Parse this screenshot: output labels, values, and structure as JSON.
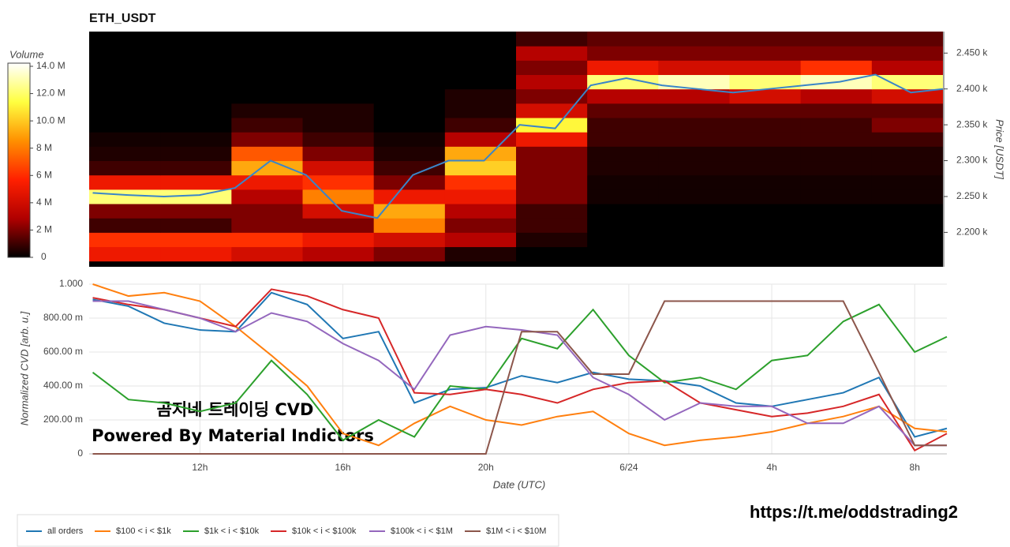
{
  "chart_data": [
    {
      "type": "heatmap",
      "title": "ETH_USDT",
      "ylabel": "Price [USDT]",
      "colorbar_label": "Volume",
      "xlim": [
        8.9,
        32.9
      ],
      "ylim": [
        2152,
        2480
      ],
      "yticks": [
        {
          "value": 2200,
          "label": "2.200 k"
        },
        {
          "value": 2250,
          "label": "2.250 k"
        },
        {
          "value": 2300,
          "label": "2.300 k"
        },
        {
          "value": 2350,
          "label": "2.350 k"
        },
        {
          "value": 2400,
          "label": "2.400 k"
        },
        {
          "value": 2450,
          "label": "2.450 k"
        }
      ],
      "zlim": [
        0,
        14000000
      ],
      "zticks": [
        0,
        {
          "value": 2000000,
          "label": "2 M"
        },
        {
          "value": 4000000,
          "label": "4 M"
        },
        {
          "value": 6000000,
          "label": "6 M"
        },
        {
          "value": 8000000,
          "label": "8 M"
        },
        {
          "value": 10000000,
          "label": "10.0 M"
        },
        {
          "value": 12000000,
          "label": "12.0 M"
        },
        {
          "value": 14000000,
          "label": "14.0 M"
        }
      ],
      "colorscale": [
        "#000000",
        "#b00000",
        "#ff2000",
        "#ff9000",
        "#ffff40",
        "#ffffff"
      ],
      "x_edges": [
        8.9,
        10.9,
        12.9,
        14.9,
        16.9,
        18.9,
        20.9,
        22.9,
        24.9,
        26.9,
        28.9,
        30.9,
        32.9
      ],
      "y_edges": [
        2160,
        2180,
        2200,
        2220,
        2240,
        2260,
        2280,
        2300,
        2320,
        2340,
        2360,
        2380,
        2400,
        2420,
        2440,
        2460,
        2480
      ],
      "z": [
        [
          5000000.0,
          5000000.0,
          4000000.0,
          3000000.0,
          2000000.0,
          500000.0,
          0,
          0,
          0,
          0,
          0,
          0
        ],
        [
          6000000.0,
          6000000.0,
          6000000.0,
          5000000.0,
          4000000.0,
          3000000.0,
          500000.0,
          0,
          0,
          0,
          0,
          0
        ],
        [
          1000000.0,
          1000000.0,
          2000000.0,
          2000000.0,
          8000000.0,
          2000000.0,
          1000000.0,
          0,
          0,
          0,
          0,
          0
        ],
        [
          2000000.0,
          2000000.0,
          2000000.0,
          4000000.0,
          9000000.0,
          3000000.0,
          1000000.0,
          0,
          0,
          0,
          0,
          0
        ],
        [
          12000000.0,
          12000000.0,
          3000000.0,
          8000000.0,
          5000000.0,
          5000000.0,
          2000000.0,
          300000.0,
          300000.0,
          300000.0,
          300000.0,
          300000.0
        ],
        [
          5000000.0,
          5000000.0,
          5000000.0,
          6000000.0,
          2000000.0,
          6000000.0,
          2000000.0,
          300000.0,
          300000.0,
          300000.0,
          300000.0,
          300000.0
        ],
        [
          1000000.0,
          1000000.0,
          9000000.0,
          4000000.0,
          1000000.0,
          10000000.0,
          2000000.0,
          500000.0,
          500000.0,
          500000.0,
          500000.0,
          500000.0
        ],
        [
          500000.0,
          500000.0,
          7000000.0,
          2000000.0,
          500000.0,
          9000000.0,
          2000000.0,
          500000.0,
          500000.0,
          500000.0,
          500000.0,
          500000.0
        ],
        [
          300000.0,
          300000.0,
          2000000.0,
          1000000.0,
          300000.0,
          3000000.0,
          5000000.0,
          1000000.0,
          1000000.0,
          1000000.0,
          1000000.0,
          1000000.0
        ],
        [
          0,
          0,
          1000000.0,
          500000.0,
          0,
          1000000.0,
          11000000.0,
          1000000.0,
          1000000.0,
          1000000.0,
          1000000.0,
          2000000.0
        ],
        [
          0,
          0,
          500000.0,
          500000.0,
          0,
          500000.0,
          4000000.0,
          1500000.0,
          1500000.0,
          1500000.0,
          1500000.0,
          1500000.0
        ],
        [
          0,
          0,
          0,
          0,
          0,
          500000.0,
          2000000.0,
          3000000.0,
          3000000.0,
          4000000.0,
          3000000.0,
          4000000.0
        ],
        [
          0,
          0,
          0,
          0,
          0,
          0,
          3000000.0,
          12000000.0,
          13000000.0,
          12000000.0,
          13000000.0,
          12000000.0
        ],
        [
          0,
          0,
          0,
          0,
          0,
          0,
          2000000.0,
          5000000.0,
          4000000.0,
          4000000.0,
          6000000.0,
          3000000.0
        ],
        [
          0,
          0,
          0,
          0,
          0,
          0,
          3000000.0,
          2000000.0,
          2000000.0,
          2000000.0,
          2000000.0,
          2000000.0
        ],
        [
          0,
          0,
          0,
          0,
          0,
          0,
          1000000.0,
          1500000.0,
          1500000.0,
          1500000.0,
          1500000.0,
          1500000.0
        ]
      ],
      "x": [
        9,
        10,
        11,
        12,
        13,
        14,
        15,
        16,
        17,
        18,
        19,
        20,
        21,
        22,
        23,
        24,
        25,
        26,
        27,
        28,
        29,
        30,
        31,
        32,
        32.9
      ],
      "series": [
        {
          "color": "#3a85c8",
          "values": [
            2255,
            2252,
            2250,
            2252,
            2262,
            2300,
            2280,
            2230,
            2220,
            2280,
            2300,
            2300,
            2350,
            2345,
            2405,
            2415,
            2405,
            2400,
            2395,
            2400,
            2405,
            2410,
            2420,
            2395,
            2400
          ]
        }
      ]
    },
    {
      "type": "line",
      "xlabel": "Date (UTC)",
      "ylabel": "Normalized CVD [arb. u.]",
      "grid": true,
      "xlim": [
        8.9,
        32.9
      ],
      "ylim": [
        0,
        1
      ],
      "xticks": [
        {
          "value": 12,
          "label": "12h"
        },
        {
          "value": 16,
          "label": "16h"
        },
        {
          "value": 20,
          "label": "20h"
        },
        {
          "value": 24,
          "label": "6/24"
        },
        {
          "value": 28,
          "label": "4h"
        },
        {
          "value": 32,
          "label": "8h"
        }
      ],
      "yticks": [
        0,
        {
          "value": 0.2,
          "label": "200.00 m"
        },
        {
          "value": 0.4,
          "label": "400.00 m"
        },
        {
          "value": 0.6,
          "label": "600.00 m"
        },
        {
          "value": 0.8,
          "label": "800.00 m"
        },
        {
          "value": 1,
          "label": "1.000"
        }
      ],
      "annotations": [
        "곰지네 트레이딩 CVD",
        "Powered By Material Indictors"
      ],
      "x": [
        9,
        10,
        11,
        12,
        13,
        14,
        15,
        16,
        17,
        18,
        19,
        20,
        21,
        22,
        23,
        24,
        25,
        26,
        27,
        28,
        29,
        30,
        31,
        32,
        32.9
      ],
      "series": [
        {
          "name": "all orders",
          "color": "#1f77b4",
          "values": [
            0.91,
            0.87,
            0.77,
            0.73,
            0.72,
            0.95,
            0.88,
            0.68,
            0.72,
            0.3,
            0.38,
            0.39,
            0.46,
            0.42,
            0.48,
            0.44,
            0.43,
            0.4,
            0.3,
            0.28,
            0.32,
            0.36,
            0.45,
            0.1,
            0.15
          ]
        },
        {
          "name": "$100 < i < $1k",
          "color": "#ff7f0e",
          "values": [
            1,
            0.93,
            0.95,
            0.9,
            0.75,
            0.58,
            0.4,
            0.12,
            0.05,
            0.18,
            0.28,
            0.2,
            0.17,
            0.22,
            0.25,
            0.12,
            0.05,
            0.08,
            0.1,
            0.13,
            0.18,
            0.22,
            0.28,
            0.15,
            0.13
          ]
        },
        {
          "name": "$1k < i < $10k",
          "color": "#2ca02c",
          "values": [
            0.48,
            0.32,
            0.3,
            0.25,
            0.3,
            0.55,
            0.35,
            0.08,
            0.2,
            0.1,
            0.4,
            0.38,
            0.68,
            0.62,
            0.85,
            0.58,
            0.42,
            0.45,
            0.38,
            0.55,
            0.58,
            0.78,
            0.88,
            0.6,
            0.69
          ]
        },
        {
          "name": "$10k < i < $100k",
          "color": "#d62728",
          "values": [
            0.92,
            0.88,
            0.85,
            0.8,
            0.75,
            0.97,
            0.93,
            0.85,
            0.8,
            0.36,
            0.35,
            0.38,
            0.35,
            0.3,
            0.38,
            0.42,
            0.43,
            0.3,
            0.26,
            0.22,
            0.24,
            0.28,
            0.35,
            0.02,
            0.12
          ]
        },
        {
          "name": "$100k < i < $1M",
          "color": "#9467bd",
          "values": [
            0.9,
            0.9,
            0.85,
            0.8,
            0.72,
            0.83,
            0.78,
            0.65,
            0.55,
            0.38,
            0.7,
            0.75,
            0.73,
            0.7,
            0.45,
            0.35,
            0.2,
            0.3,
            0.28,
            0.28,
            0.18,
            0.18,
            0.28,
            0.05,
            0.05
          ]
        },
        {
          "name": "$1M < i < $10M",
          "color": "#8c564b",
          "values": [
            0,
            0,
            0,
            0,
            0,
            0,
            0,
            0,
            0,
            0,
            0,
            0,
            0.72,
            0.72,
            0.47,
            0.47,
            0.9,
            0.9,
            0.9,
            0.9,
            0.9,
            0.9,
            0.48,
            0.05,
            0.05
          ]
        }
      ]
    }
  ],
  "footer": "https://t.me/oddstrading2"
}
